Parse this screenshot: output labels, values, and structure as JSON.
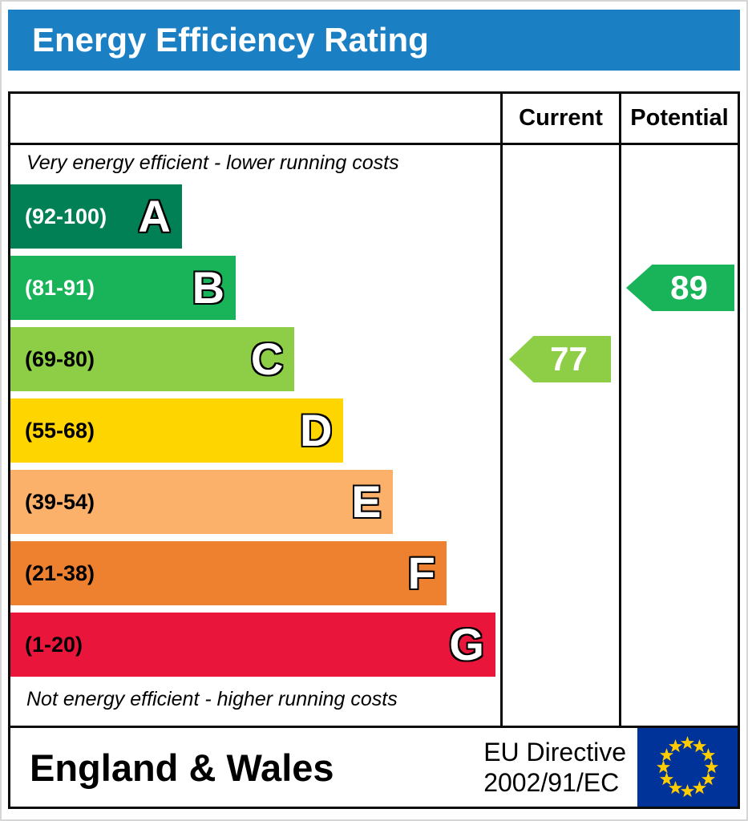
{
  "header": {
    "title": "Energy Efficiency Rating",
    "bg_color": "#1b7fc4",
    "text_color": "#ffffff"
  },
  "columns": {
    "current": "Current",
    "potential": "Potential"
  },
  "notes": {
    "top": "Very energy efficient - lower running costs",
    "bottom": "Not energy efficient - higher running costs"
  },
  "chart_data": {
    "type": "bar",
    "subtype": "energy-efficiency-rating",
    "bands": [
      {
        "letter": "A",
        "range": "(92-100)",
        "color": "#008054",
        "text_color": "#ffffff",
        "width_pct": 35
      },
      {
        "letter": "B",
        "range": "(81-91)",
        "color": "#19b459",
        "text_color": "#ffffff",
        "width_pct": 46
      },
      {
        "letter": "C",
        "range": "(69-80)",
        "color": "#8dce46",
        "text_color": "#000000",
        "width_pct": 58
      },
      {
        "letter": "D",
        "range": "(55-68)",
        "color": "#ffd500",
        "text_color": "#000000",
        "width_pct": 68
      },
      {
        "letter": "E",
        "range": "(39-54)",
        "color": "#fbb16a",
        "text_color": "#000000",
        "width_pct": 78
      },
      {
        "letter": "F",
        "range": "(21-38)",
        "color": "#ee8130",
        "text_color": "#000000",
        "width_pct": 89
      },
      {
        "letter": "G",
        "range": "(1-20)",
        "color": "#e9153b",
        "text_color": "#000000",
        "width_pct": 99
      }
    ],
    "current": {
      "value": "77",
      "band": "C",
      "band_index": 2,
      "color": "#8dce46"
    },
    "potential": {
      "value": "89",
      "band": "B",
      "band_index": 1,
      "color": "#19b459"
    }
  },
  "footer": {
    "region": "England & Wales",
    "directive": [
      "EU Directive",
      "2002/91/EC"
    ],
    "flag": {
      "name": "eu-flag",
      "bg": "#003399",
      "star_color": "#ffcc00"
    }
  }
}
